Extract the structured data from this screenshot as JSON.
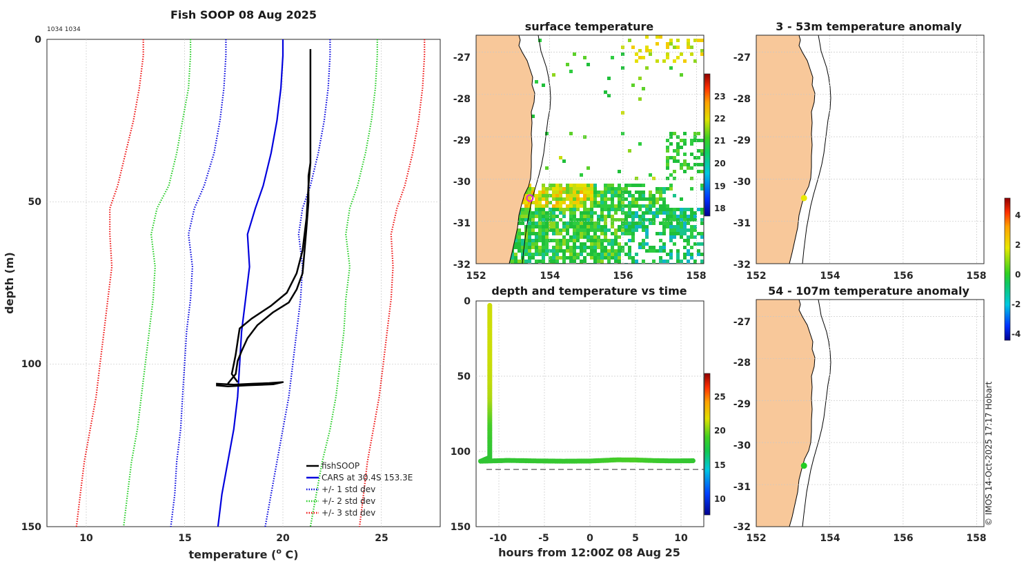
{
  "chart_data": [
    {
      "id": "profile",
      "type": "line",
      "title": "Fish SOOP 08 Aug 2025",
      "corner_label": "1034 1034",
      "xlabel": "temperature (",
      "xlabel_sup": "o",
      "xlabel_end": " C)",
      "ylabel": "depth (m)",
      "xlim": [
        8,
        28
      ],
      "ylim": [
        0,
        150
      ],
      "xticks": [
        "10",
        "15",
        "20",
        "25"
      ],
      "yticks": [
        "0",
        "50",
        "100",
        "150"
      ],
      "legend": [
        {
          "label": "fishSOOP",
          "color": "#000000",
          "style": "solid"
        },
        {
          "label": "CARS at 30.4S 153.3E",
          "color": "#0000dd",
          "style": "solid"
        },
        {
          "label": "+/- 1 std dev",
          "color": "#0000dd",
          "style": "dotted"
        },
        {
          "label": "+/- 2 std dev",
          "color": "#22cc22",
          "style": "dotted"
        },
        {
          "label": "+/- 3 std dev",
          "color": "#ee1111",
          "style": "dotted"
        }
      ],
      "series": [
        {
          "name": "CARS mean",
          "color": "#0000dd",
          "style": "solid",
          "points": [
            [
              20.0,
              0
            ],
            [
              20.0,
              5
            ],
            [
              19.9,
              15
            ],
            [
              19.7,
              25
            ],
            [
              19.4,
              35
            ],
            [
              19.0,
              45
            ],
            [
              18.6,
              52
            ],
            [
              18.2,
              60
            ],
            [
              18.3,
              70
            ],
            [
              18.1,
              80
            ],
            [
              17.9,
              90
            ],
            [
              17.8,
              100
            ],
            [
              17.7,
              110
            ],
            [
              17.5,
              120
            ],
            [
              17.2,
              130
            ],
            [
              16.9,
              140
            ],
            [
              16.7,
              150
            ]
          ]
        },
        {
          "name": "CARS +1 std",
          "color": "#0000dd",
          "style": "dotted",
          "points": [
            [
              22.4,
              0
            ],
            [
              22.4,
              5
            ],
            [
              22.3,
              15
            ],
            [
              22.1,
              25
            ],
            [
              21.8,
              35
            ],
            [
              21.4,
              45
            ],
            [
              21.0,
              52
            ],
            [
              20.8,
              60
            ],
            [
              21.0,
              70
            ],
            [
              20.9,
              80
            ],
            [
              20.7,
              90
            ],
            [
              20.5,
              100
            ],
            [
              20.3,
              110
            ],
            [
              20.0,
              120
            ],
            [
              19.7,
              130
            ],
            [
              19.4,
              140
            ],
            [
              19.1,
              150
            ]
          ]
        },
        {
          "name": "CARS -1 std",
          "color": "#0000dd",
          "style": "dotted",
          "points": [
            [
              17.1,
              0
            ],
            [
              17.1,
              5
            ],
            [
              17.0,
              15
            ],
            [
              16.8,
              25
            ],
            [
              16.5,
              35
            ],
            [
              16.0,
              45
            ],
            [
              15.5,
              52
            ],
            [
              15.2,
              60
            ],
            [
              15.4,
              70
            ],
            [
              15.3,
              80
            ],
            [
              15.1,
              90
            ],
            [
              15.0,
              100
            ],
            [
              14.9,
              110
            ],
            [
              14.8,
              120
            ],
            [
              14.6,
              130
            ],
            [
              14.5,
              140
            ],
            [
              14.3,
              150
            ]
          ]
        },
        {
          "name": "CARS +2 std",
          "color": "#22cc22",
          "style": "dotted",
          "points": [
            [
              24.8,
              0
            ],
            [
              24.8,
              5
            ],
            [
              24.7,
              15
            ],
            [
              24.5,
              25
            ],
            [
              24.2,
              35
            ],
            [
              23.8,
              45
            ],
            [
              23.4,
              52
            ],
            [
              23.2,
              60
            ],
            [
              23.4,
              70
            ],
            [
              23.2,
              80
            ],
            [
              23.1,
              90
            ],
            [
              22.9,
              100
            ],
            [
              22.7,
              110
            ],
            [
              22.4,
              120
            ],
            [
              22.0,
              130
            ],
            [
              21.7,
              140
            ],
            [
              21.4,
              150
            ]
          ]
        },
        {
          "name": "CARS -2 std",
          "color": "#22cc22",
          "style": "dotted",
          "points": [
            [
              15.3,
              0
            ],
            [
              15.3,
              5
            ],
            [
              15.2,
              15
            ],
            [
              14.9,
              25
            ],
            [
              14.6,
              35
            ],
            [
              14.2,
              45
            ],
            [
              13.6,
              52
            ],
            [
              13.3,
              60
            ],
            [
              13.5,
              70
            ],
            [
              13.4,
              80
            ],
            [
              13.2,
              90
            ],
            [
              13.0,
              100
            ],
            [
              12.8,
              110
            ],
            [
              12.6,
              120
            ],
            [
              12.3,
              130
            ],
            [
              12.1,
              140
            ],
            [
              11.9,
              150
            ]
          ]
        },
        {
          "name": "CARS +3 std",
          "color": "#ee1111",
          "style": "dotted",
          "points": [
            [
              27.2,
              0
            ],
            [
              27.2,
              5
            ],
            [
              27.1,
              15
            ],
            [
              26.9,
              25
            ],
            [
              26.6,
              35
            ],
            [
              26.2,
              45
            ],
            [
              25.8,
              52
            ],
            [
              25.5,
              60
            ],
            [
              25.6,
              70
            ],
            [
              25.5,
              80
            ],
            [
              25.3,
              90
            ],
            [
              25.1,
              100
            ],
            [
              24.9,
              110
            ],
            [
              24.6,
              120
            ],
            [
              24.3,
              130
            ],
            [
              24.1,
              140
            ],
            [
              23.9,
              150
            ]
          ]
        },
        {
          "name": "CARS -3 std",
          "color": "#ee1111",
          "style": "dotted",
          "points": [
            [
              12.9,
              0
            ],
            [
              12.9,
              5
            ],
            [
              12.7,
              15
            ],
            [
              12.4,
              25
            ],
            [
              12.0,
              35
            ],
            [
              11.6,
              45
            ],
            [
              11.2,
              52
            ],
            [
              11.2,
              60
            ],
            [
              11.3,
              70
            ],
            [
              11.1,
              80
            ],
            [
              10.9,
              90
            ],
            [
              10.7,
              100
            ],
            [
              10.5,
              110
            ],
            [
              10.2,
              120
            ],
            [
              9.9,
              130
            ],
            [
              9.7,
              140
            ],
            [
              9.5,
              150
            ]
          ]
        },
        {
          "name": "fishSOOP down",
          "color": "#000000",
          "style": "solid",
          "points": [
            [
              21.4,
              3
            ],
            [
              21.4,
              15
            ],
            [
              21.4,
              30
            ],
            [
              21.4,
              38
            ],
            [
              21.3,
              45
            ],
            [
              21.2,
              55
            ],
            [
              21.0,
              65
            ],
            [
              20.7,
              72
            ],
            [
              20.2,
              78
            ],
            [
              19.4,
              82
            ],
            [
              18.4,
              86
            ],
            [
              17.8,
              89
            ],
            [
              17.7,
              93
            ],
            [
              17.6,
              97
            ],
            [
              17.5,
              100
            ],
            [
              17.4,
              103
            ],
            [
              17.7,
              105.5
            ]
          ]
        },
        {
          "name": "fishSOOP up",
          "color": "#000000",
          "style": "solid",
          "points": [
            [
              17.2,
              106
            ],
            [
              17.6,
              103
            ],
            [
              17.7,
              99
            ],
            [
              17.9,
              96
            ],
            [
              18.2,
              92
            ],
            [
              18.7,
              88
            ],
            [
              19.5,
              84
            ],
            [
              20.3,
              81
            ],
            [
              20.7,
              77
            ],
            [
              21.0,
              72
            ],
            [
              21.1,
              65
            ],
            [
              21.2,
              58
            ],
            [
              21.3,
              50
            ],
            [
              21.3,
              42
            ],
            [
              21.4,
              38
            ]
          ]
        },
        {
          "name": "fishSOOP bottom",
          "color": "#000000",
          "style": "solid",
          "points": [
            [
              16.6,
              106
            ],
            [
              17.5,
              106.3
            ],
            [
              18.5,
              106
            ],
            [
              19.3,
              105.8
            ],
            [
              20.0,
              105.5
            ],
            [
              19.5,
              106.2
            ],
            [
              18.2,
              106.5
            ],
            [
              17.2,
              106.8
            ],
            [
              16.6,
              106.5
            ]
          ]
        }
      ]
    },
    {
      "id": "sst_map",
      "type": "heatmap",
      "title": "surface temperature",
      "xlim": [
        152,
        158.2
      ],
      "ylim": [
        -32,
        -26.6
      ],
      "xticks": [
        "152",
        "154",
        "156",
        "158"
      ],
      "yticks": [
        "-27",
        "-28",
        "-29",
        "-30",
        "-31",
        "-32"
      ],
      "colorbar": {
        "range": [
          17.5,
          24
        ],
        "ticks": [
          "18",
          "19",
          "20",
          "21",
          "22",
          "23"
        ]
      },
      "marker": {
        "lon": 153.3,
        "lat": -30.4,
        "color": "#dd22dd"
      }
    },
    {
      "id": "depth_time",
      "type": "scatter",
      "title": "depth and temperature vs time",
      "xlabel": "hours from 12:00Z 08 Aug 25",
      "xlim": [
        -12.5,
        12.5
      ],
      "ylim": [
        0,
        150
      ],
      "xticks": [
        "-10",
        "-5",
        "0",
        "5",
        "10"
      ],
      "yticks": [
        "0",
        "50",
        "100",
        "150"
      ],
      "bottom_depth": 112,
      "colorbar": {
        "range": [
          7,
          28
        ],
        "ticks": [
          "10",
          "15",
          "20",
          "25"
        ]
      },
      "track": [
        [
          -11,
          3,
          21.4
        ],
        [
          -11,
          20,
          21.4
        ],
        [
          -11,
          40,
          21.3
        ],
        [
          -11,
          55,
          21
        ],
        [
          -11,
          65,
          20.5
        ],
        [
          -11,
          75,
          19.5
        ],
        [
          -11,
          85,
          18.5
        ],
        [
          -11,
          95,
          17.8
        ],
        [
          -11,
          104,
          17.4
        ],
        [
          -12,
          106.5,
          17.5
        ],
        [
          -9,
          106,
          17.6
        ],
        [
          -6,
          106.3,
          17.7
        ],
        [
          -3,
          106.5,
          17.8
        ],
        [
          0,
          106.4,
          18.0
        ],
        [
          3,
          105.6,
          18.6
        ],
        [
          5,
          105.7,
          18.8
        ],
        [
          7,
          106.1,
          18.2
        ],
        [
          9,
          106.3,
          17.8
        ],
        [
          11.5,
          106.2,
          17.7
        ]
      ]
    },
    {
      "id": "anom_shallow",
      "type": "heatmap",
      "title": "3 - 53m temperature anomaly",
      "xlim": [
        152,
        158.2
      ],
      "ylim": [
        -32,
        -26.6
      ],
      "xticks": [
        "152",
        "154",
        "156",
        "158"
      ],
      "yticks": [
        "-27",
        "-28",
        "-29",
        "-30",
        "-31",
        "-32"
      ],
      "points": [
        {
          "lon": 153.3,
          "lat": -30.45,
          "anomaly": 2.5
        }
      ]
    },
    {
      "id": "anom_deep",
      "type": "heatmap",
      "title": "54 - 107m temperature anomaly",
      "xlim": [
        152,
        158.2
      ],
      "ylim": [
        -32,
        -26.6
      ],
      "xticks": [
        "152",
        "154",
        "156",
        "158"
      ],
      "yticks": [
        "-27",
        "-28",
        "-29",
        "-30",
        "-31",
        "-32"
      ],
      "points": [
        {
          "lon": 153.3,
          "lat": -30.55,
          "anomaly": 0.5
        }
      ],
      "colorbar": {
        "range": [
          -4.3,
          5.3
        ],
        "ticks": [
          "4",
          "2",
          "0",
          "-2",
          "-4"
        ]
      }
    }
  ],
  "credit": "© IMOS 14-Oct-2025 17:17 Hobart",
  "colors": {
    "land": "#f8c89a",
    "grid": "#c8c8c8",
    "axis": "#262626"
  }
}
